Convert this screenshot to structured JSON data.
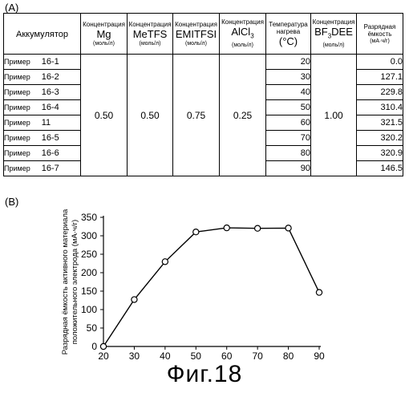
{
  "panel_a_label": "(A)",
  "panel_b_label": "(B)",
  "figure_caption": "Фиг.18",
  "table": {
    "headers": {
      "battery": "Аккумулятор",
      "mg_title": "Концентрация",
      "mg_name": "Mg",
      "mg_unit": "(моль/л)",
      "metfs_title": "Концентрация",
      "metfs_name": "MeTFS",
      "metfs_unit": "(моль/л)",
      "emi_title": "Концентрация",
      "emi_name": "EMITFSI",
      "emi_unit": "(моль/л)",
      "alcl_title": "Концентрация",
      "alcl_name": "AlCl",
      "alcl_sub": "3",
      "alcl_unit": "(моль/л)",
      "temp_title1": "Температура",
      "temp_title2": "нагрева",
      "temp_unit": "(°C)",
      "bf_title": "Концентрация",
      "bf_name1": "BF",
      "bf_sub": "3",
      "bf_name2": "DEE",
      "bf_unit": "(моль/л)",
      "cap_title1": "Разрядная",
      "cap_title2": "ёмкость",
      "cap_unit": "(мА·ч/г)"
    },
    "rows": [
      {
        "label": "Пример",
        "num": "16-1",
        "temp": "20",
        "capacity": "0.0"
      },
      {
        "label": "Пример",
        "num": "16-2",
        "temp": "30",
        "capacity": "127.1"
      },
      {
        "label": "Пример",
        "num": "16-3",
        "temp": "40",
        "capacity": "229.8"
      },
      {
        "label": "Пример",
        "num": "16-4",
        "temp": "50",
        "capacity": "310.4"
      },
      {
        "label": "Пример",
        "num": "11",
        "temp": "60",
        "capacity": "321.5"
      },
      {
        "label": "Пример",
        "num": "16-5",
        "temp": "70",
        "capacity": "320.2"
      },
      {
        "label": "Пример",
        "num": "16-6",
        "temp": "80",
        "capacity": "320.9"
      },
      {
        "label": "Пример",
        "num": "16-7",
        "temp": "90",
        "capacity": "146.5"
      }
    ],
    "shared": {
      "mg": "0.50",
      "metfs": "0.50",
      "emitfsi": "0.75",
      "alcl3": "0.25",
      "bf3dee": "1.00"
    }
  },
  "chart_data": {
    "type": "line",
    "title": "",
    "xlabel": "Температура нагрева",
    "xunit": "[°C]",
    "ylabel": "Разрядная ёмкость активного материала положительного электрода (мА·ч/г)",
    "ylabel_line1": "Разрядная ёмкость активного материала",
    "ylabel_line2": "положительного электрода (мА·ч/г)",
    "x": [
      20,
      30,
      40,
      50,
      60,
      70,
      80,
      90
    ],
    "series": [
      {
        "values": [
          0.0,
          127.1,
          229.8,
          310.4,
          321.5,
          320.2,
          320.9,
          146.5
        ]
      }
    ],
    "xlim": [
      20,
      90
    ],
    "ylim": [
      0,
      350
    ],
    "xticks": [
      20,
      30,
      40,
      50,
      60,
      70,
      80,
      90
    ],
    "yticks": [
      0,
      50,
      100,
      150,
      200,
      250,
      300,
      350
    ],
    "grid": false,
    "marker": "open-circle"
  }
}
